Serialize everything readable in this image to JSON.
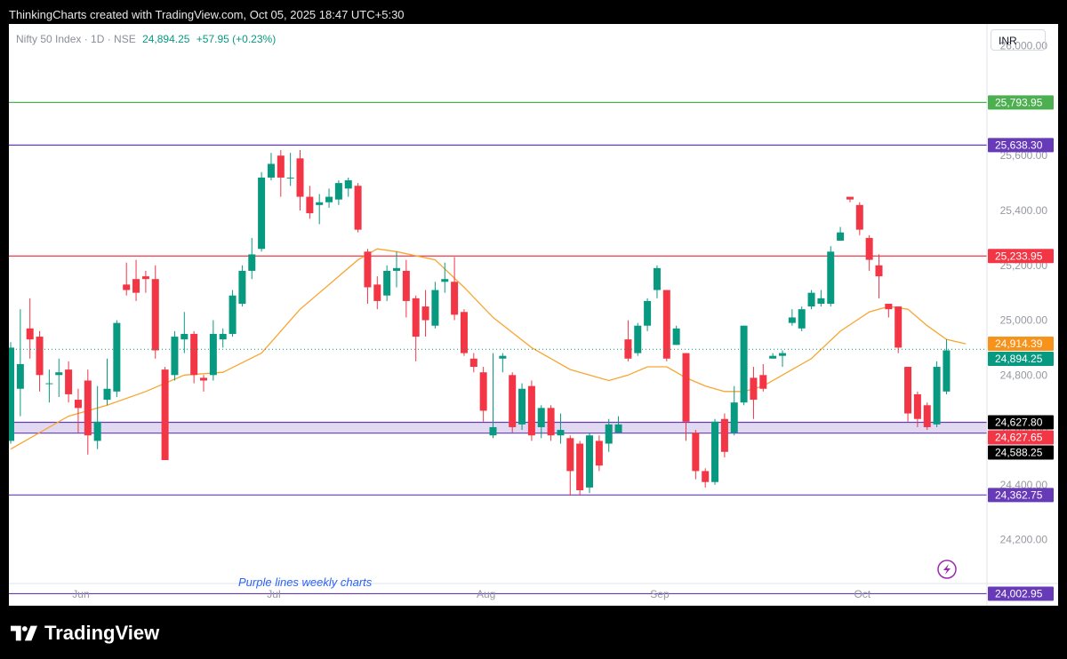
{
  "header": {
    "text": "ThinkingCharts created with TradingView.com, Oct 05, 2025 18:47 UTC+5:30"
  },
  "legend": {
    "symbol": "Nifty 50 Index · 1D · NSE",
    "price": "24,894.25",
    "change": "+57.95 (+0.23%)"
  },
  "currency": "INR",
  "annotation": "Purple lines weekly charts",
  "footer": {
    "brand": "TradingView",
    "logo_icon": "tradingview-logo-icon"
  },
  "flash_icon": "lightning-icon",
  "chart_data": {
    "type": "candlestick",
    "ylim": [
      24040,
      26080
    ],
    "yticks": [
      {
        "value": 26000,
        "label": "26,000.00"
      },
      {
        "value": 25800,
        "label": "25,800.00"
      },
      {
        "value": 25600,
        "label": "25,600.00"
      },
      {
        "value": 25400,
        "label": "25,400.00"
      },
      {
        "value": 25200,
        "label": "25,200.00"
      },
      {
        "value": 25000,
        "label": "25,000.00"
      },
      {
        "value": 24800,
        "label": "24,800.00"
      },
      {
        "value": 24600,
        "label": "24,600.00"
      },
      {
        "value": 24400,
        "label": "24,400.00"
      },
      {
        "value": 24200,
        "label": "24,200.00"
      }
    ],
    "xticks": [
      {
        "index": 7,
        "label": "Jun"
      },
      {
        "index": 27,
        "label": "Jul"
      },
      {
        "index": 49,
        "label": "Aug"
      },
      {
        "index": 67,
        "label": "Sep"
      },
      {
        "index": 88,
        "label": "Oct"
      }
    ],
    "hlines": [
      {
        "value": 25793.95,
        "label": "25,793.95",
        "color": "#4caf50"
      },
      {
        "value": 25638.3,
        "label": "25,638.30",
        "color": "#673ab7"
      },
      {
        "value": 25233.95,
        "label": "25,233.95",
        "color": "#f23645"
      },
      {
        "value": 24362.75,
        "label": "24,362.75",
        "color": "#673ab7"
      },
      {
        "value": 24002.95,
        "label": "24,002.95",
        "color": "#673ab7"
      }
    ],
    "zone": {
      "top": 24627.8,
      "bottom": 24588.25,
      "top_label": "24,627.80",
      "bottom_label": "24,588.25",
      "color": "#673ab7"
    },
    "price_tags": [
      {
        "value": 24914.39,
        "label": "24,914.39",
        "color": "#f7931a"
      },
      {
        "value": 24894.25,
        "label": "24,894.25",
        "color": "#089981"
      },
      {
        "value": 24627.8,
        "label": "24,627.80",
        "color": "#000000"
      },
      {
        "value": 24627.65,
        "label": "24,627.65",
        "color": "#f23645",
        "offset": 17
      },
      {
        "value": 24588.25,
        "label": "24,588.25",
        "color": "#000000",
        "offset": 17
      }
    ],
    "last_price": 24894.25,
    "up_color": "#089981",
    "down_color": "#f23645",
    "ma_color": "#f7a631",
    "candles": [
      [
        24560,
        24900,
        24920,
        24550
      ],
      [
        24750,
        24840,
        25040,
        24650
      ],
      [
        24970,
        24930,
        25080,
        24860
      ],
      [
        24940,
        24800,
        24960,
        24740
      ],
      [
        24770,
        24770,
        24820,
        24700
      ],
      [
        24800,
        24810,
        24860,
        24720
      ],
      [
        24820,
        24730,
        24850,
        24700
      ],
      [
        24710,
        24680,
        24750,
        24590
      ],
      [
        24780,
        24580,
        24820,
        24510
      ],
      [
        24560,
        24630,
        24760,
        24530
      ],
      [
        24710,
        24750,
        24860,
        24690
      ],
      [
        24740,
        24990,
        25000,
        24720
      ],
      [
        25130,
        25110,
        25210,
        25090
      ],
      [
        25150,
        25100,
        25220,
        25070
      ],
      [
        25160,
        25150,
        25180,
        25100
      ],
      [
        25150,
        24890,
        25200,
        24860
      ],
      [
        24820,
        24490,
        24830,
        24490
      ],
      [
        24800,
        24940,
        24960,
        24780
      ],
      [
        24930,
        24950,
        25030,
        24880
      ],
      [
        24950,
        24800,
        24960,
        24770
      ],
      [
        24790,
        24780,
        24800,
        24740
      ],
      [
        24800,
        24950,
        25000,
        24780
      ],
      [
        24930,
        24950,
        24970,
        24900
      ],
      [
        24950,
        25090,
        25110,
        24940
      ],
      [
        25060,
        25180,
        25200,
        25050
      ],
      [
        25180,
        25240,
        25300,
        25150
      ],
      [
        25260,
        25520,
        25540,
        25250
      ],
      [
        25520,
        25570,
        25610,
        25510
      ],
      [
        25600,
        25520,
        25620,
        25450
      ],
      [
        25520,
        25520,
        25610,
        25490
      ],
      [
        25590,
        25450,
        25620,
        25400
      ],
      [
        25450,
        25390,
        25490,
        25370
      ],
      [
        25420,
        25430,
        25460,
        25350
      ],
      [
        25430,
        25450,
        25480,
        25410
      ],
      [
        25440,
        25500,
        25510,
        25420
      ],
      [
        25480,
        25510,
        25520,
        25450
      ],
      [
        25490,
        25330,
        25500,
        25320
      ],
      [
        25250,
        25120,
        25260,
        25060
      ],
      [
        25130,
        25070,
        25160,
        25040
      ],
      [
        25090,
        25180,
        25200,
        25070
      ],
      [
        25180,
        25190,
        25250,
        25120
      ],
      [
        25180,
        25070,
        25220,
        25010
      ],
      [
        25080,
        24940,
        25090,
        24850
      ],
      [
        25050,
        25000,
        25110,
        24940
      ],
      [
        24980,
        25110,
        25140,
        24970
      ],
      [
        25140,
        25150,
        25210,
        25100
      ],
      [
        25140,
        25020,
        25230,
        25000
      ],
      [
        25030,
        24880,
        25040,
        24870
      ],
      [
        24860,
        24830,
        24880,
        24810
      ],
      [
        24810,
        24670,
        24830,
        24630
      ],
      [
        24580,
        24610,
        24880,
        24570
      ],
      [
        24860,
        24870,
        24880,
        24810
      ],
      [
        24800,
        24610,
        24810,
        24590
      ],
      [
        24620,
        24750,
        24770,
        24600
      ],
      [
        24760,
        24580,
        24780,
        24560
      ],
      [
        24610,
        24680,
        24690,
        24570
      ],
      [
        24680,
        24580,
        24690,
        24560
      ],
      [
        24580,
        24600,
        24660,
        24550
      ],
      [
        24570,
        24450,
        24580,
        24360
      ],
      [
        24550,
        24380,
        24560,
        24360
      ],
      [
        24390,
        24580,
        24590,
        24370
      ],
      [
        24560,
        24470,
        24580,
        24450
      ],
      [
        24550,
        24620,
        24640,
        24520
      ],
      [
        24590,
        24620,
        24650,
        24600
      ],
      [
        24930,
        24860,
        25000,
        24850
      ],
      [
        24880,
        24980,
        24990,
        24870
      ],
      [
        24980,
        25070,
        25080,
        24960
      ],
      [
        25110,
        25190,
        25200,
        25080
      ],
      [
        25110,
        24860,
        25110,
        24850
      ],
      [
        24910,
        24970,
        24980,
        24910
      ],
      [
        24880,
        24630,
        24880,
        24560
      ],
      [
        24590,
        24450,
        24600,
        24420
      ],
      [
        24450,
        24410,
        24460,
        24390
      ],
      [
        24410,
        24630,
        24640,
        24400
      ],
      [
        24640,
        24520,
        24660,
        24500
      ],
      [
        24590,
        24700,
        24760,
        24580
      ],
      [
        24700,
        24980,
        24980,
        24690
      ],
      [
        24790,
        24710,
        24830,
        24640
      ],
      [
        24800,
        24750,
        24840,
        24740
      ],
      [
        24860,
        24870,
        24880,
        24860
      ],
      [
        24870,
        24880,
        24890,
        24830
      ],
      [
        24990,
        25010,
        25040,
        24980
      ],
      [
        24970,
        25040,
        25050,
        24960
      ],
      [
        25050,
        25100,
        25110,
        25040
      ],
      [
        25060,
        25080,
        25110,
        25050
      ],
      [
        25060,
        25250,
        25270,
        25050
      ],
      [
        25290,
        25320,
        25340,
        25290
      ],
      [
        25450,
        25440,
        25450,
        25430
      ],
      [
        25420,
        25330,
        25430,
        25310
      ],
      [
        25300,
        25220,
        25310,
        25180
      ],
      [
        25200,
        25160,
        25240,
        25080
      ],
      [
        25060,
        25040,
        25060,
        25010
      ],
      [
        25050,
        24900,
        25050,
        24880
      ],
      [
        24830,
        24660,
        24830,
        24630
      ],
      [
        24730,
        24640,
        24740,
        24610
      ],
      [
        24690,
        24610,
        24700,
        24600
      ],
      [
        24620,
        24830,
        24850,
        24610
      ],
      [
        24740,
        24890,
        24930,
        24730
      ]
    ],
    "ma": [
      [
        0,
        24530
      ],
      [
        6,
        24650
      ],
      [
        10,
        24690
      ],
      [
        14,
        24740
      ],
      [
        18,
        24800
      ],
      [
        22,
        24810
      ],
      [
        26,
        24880
      ],
      [
        30,
        25040
      ],
      [
        34,
        25160
      ],
      [
        36,
        25220
      ],
      [
        38,
        25260
      ],
      [
        40,
        25250
      ],
      [
        44,
        25220
      ],
      [
        47,
        25120
      ],
      [
        50,
        25010
      ],
      [
        54,
        24900
      ],
      [
        58,
        24820
      ],
      [
        62,
        24780
      ],
      [
        64,
        24800
      ],
      [
        66,
        24830
      ],
      [
        68,
        24830
      ],
      [
        70,
        24790
      ],
      [
        72,
        24760
      ],
      [
        74,
        24740
      ],
      [
        76,
        24740
      ],
      [
        78,
        24760
      ],
      [
        80,
        24800
      ],
      [
        83,
        24860
      ],
      [
        86,
        24960
      ],
      [
        89,
        25030
      ],
      [
        91,
        25050
      ],
      [
        93,
        25040
      ],
      [
        95,
        24980
      ],
      [
        97,
        24930
      ],
      [
        99,
        24914
      ]
    ]
  }
}
